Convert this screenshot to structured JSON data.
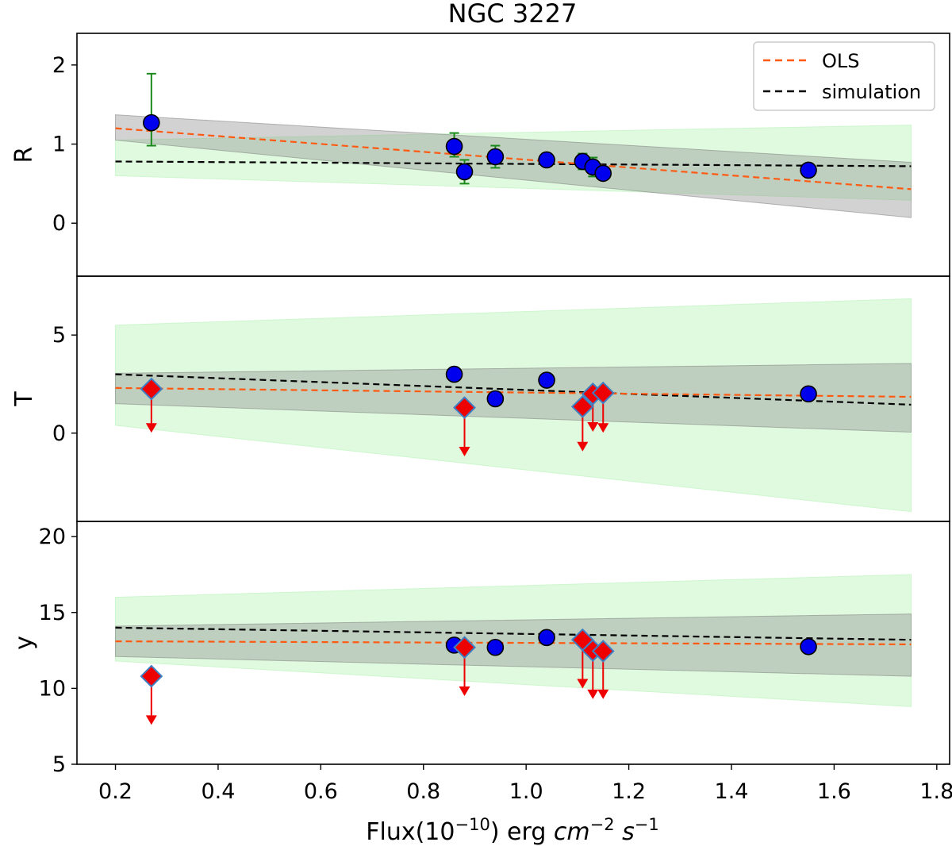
{
  "chart_data": {
    "type": "scatter",
    "title": "NGC 3227",
    "xlabel": {
      "main": "Flux(10",
      "exp": "−10",
      "mid": ") erg ",
      "cm": "cm",
      "cm_exp": "−2",
      "s": "s",
      "s_exp": "−1"
    },
    "xlim": [
      0.125,
      1.825
    ],
    "xticks": [
      0.2,
      0.4,
      0.6,
      0.8,
      1.0,
      1.2,
      1.4,
      1.6,
      1.8
    ],
    "xtick_labels": [
      "0.2",
      "0.4",
      "0.6",
      "0.8",
      "1.0",
      "1.2",
      "1.4",
      "1.6",
      "1.8"
    ],
    "legend": {
      "location": "top-right",
      "entries": [
        {
          "label": "OLS",
          "color": "#ff5a12",
          "style": "dashed"
        },
        {
          "label": "simulation",
          "color": "#000000",
          "style": "dashed"
        }
      ]
    },
    "colors": {
      "ols": "#ff5a12",
      "simulation": "#000000",
      "gray_band": "#bebebe",
      "green_band": "#ccf7cc",
      "detection": "#0000ee",
      "upper_limit": "#ee0000",
      "upper_limit_edge": "#3e7fc4",
      "errorbar": "#1a8a1a"
    },
    "panels": [
      {
        "ylabel": "R",
        "ylim": [
          -0.67,
          2.4
        ],
        "yticks": [
          0,
          1,
          2
        ],
        "ytick_labels": [
          "0",
          "1",
          "2"
        ],
        "x_range": [
          0.2,
          1.75
        ],
        "ols_line": [
          1.2,
          0.43
        ],
        "sim_line": [
          0.78,
          0.72
        ],
        "gray_band": {
          "upper": [
            1.37,
            0.77
          ],
          "lower": [
            1.05,
            0.07
          ]
        },
        "green_band": {
          "upper": [
            1.05,
            1.24
          ],
          "lower": [
            0.6,
            0.29
          ]
        },
        "detections": [
          {
            "x": 0.27,
            "y": 1.27,
            "err_lo": 0.29,
            "err_hi": 0.62
          },
          {
            "x": 0.86,
            "y": 0.97,
            "err_lo": 0.13,
            "err_hi": 0.17
          },
          {
            "x": 0.88,
            "y": 0.65,
            "err_lo": 0.15,
            "err_hi": 0.15
          },
          {
            "x": 0.94,
            "y": 0.84,
            "err_lo": 0.14,
            "err_hi": 0.14
          },
          {
            "x": 1.04,
            "y": 0.8,
            "err_lo": 0.07,
            "err_hi": 0.07
          },
          {
            "x": 1.11,
            "y": 0.78,
            "err_lo": 0.1,
            "err_hi": 0.1
          },
          {
            "x": 1.13,
            "y": 0.71,
            "err_lo": 0.12,
            "err_hi": 0.12
          },
          {
            "x": 1.15,
            "y": 0.63,
            "err_lo": 0.0,
            "err_hi": 0.0
          },
          {
            "x": 1.55,
            "y": 0.67,
            "err_lo": 0.0,
            "err_hi": 0.0
          }
        ],
        "upper_limits": []
      },
      {
        "ylabel": "T",
        "ylim": [
          -4.5,
          8.0
        ],
        "yticks": [
          0,
          5
        ],
        "ytick_labels": [
          "0",
          "5"
        ],
        "x_range": [
          0.2,
          1.75
        ],
        "ols_line": [
          2.3,
          1.85
        ],
        "sim_line": [
          3.0,
          1.45
        ],
        "gray_band": {
          "upper": [
            3.05,
            3.55
          ],
          "lower": [
            1.5,
            0.05
          ]
        },
        "green_band": {
          "upper": [
            5.5,
            6.85
          ],
          "lower": [
            0.4,
            -4.0
          ]
        },
        "detections": [
          {
            "x": 0.86,
            "y": 3.0
          },
          {
            "x": 0.94,
            "y": 1.75
          },
          {
            "x": 1.04,
            "y": 2.7
          },
          {
            "x": 1.55,
            "y": 2.0
          }
        ],
        "upper_limits": [
          {
            "x": 0.27,
            "y": 2.25,
            "arrow_to": 0.1
          },
          {
            "x": 0.88,
            "y": 1.3,
            "arrow_to": -1.1
          },
          {
            "x": 1.11,
            "y": 1.35,
            "arrow_to": -0.85
          },
          {
            "x": 1.13,
            "y": 2.0,
            "arrow_to": 0.15
          },
          {
            "x": 1.15,
            "y": 2.05,
            "arrow_to": 0.1
          }
        ]
      },
      {
        "ylabel": "y",
        "ylim": [
          5.0,
          21.0
        ],
        "yticks": [
          5,
          10,
          15,
          20
        ],
        "ytick_labels": [
          "5",
          "10",
          "15",
          "20"
        ],
        "x_range": [
          0.2,
          1.75
        ],
        "ols_line": [
          13.1,
          12.9
        ],
        "sim_line": [
          14.0,
          13.2
        ],
        "gray_band": {
          "upper": [
            14.1,
            14.9
          ],
          "lower": [
            12.1,
            10.8
          ]
        },
        "green_band": {
          "upper": [
            16.0,
            17.5
          ],
          "lower": [
            11.8,
            8.8
          ]
        },
        "detections": [
          {
            "x": 0.86,
            "y": 12.85
          },
          {
            "x": 0.94,
            "y": 12.7
          },
          {
            "x": 1.04,
            "y": 13.35
          },
          {
            "x": 1.55,
            "y": 12.75
          }
        ],
        "upper_limits": [
          {
            "x": 0.27,
            "y": 10.8,
            "arrow_to": 7.7
          },
          {
            "x": 0.88,
            "y": 12.7,
            "arrow_to": 9.6
          },
          {
            "x": 1.11,
            "y": 13.2,
            "arrow_to": 10.1
          },
          {
            "x": 1.13,
            "y": 12.5,
            "arrow_to": 9.4
          },
          {
            "x": 1.15,
            "y": 12.45,
            "arrow_to": 9.4
          }
        ]
      }
    ]
  }
}
